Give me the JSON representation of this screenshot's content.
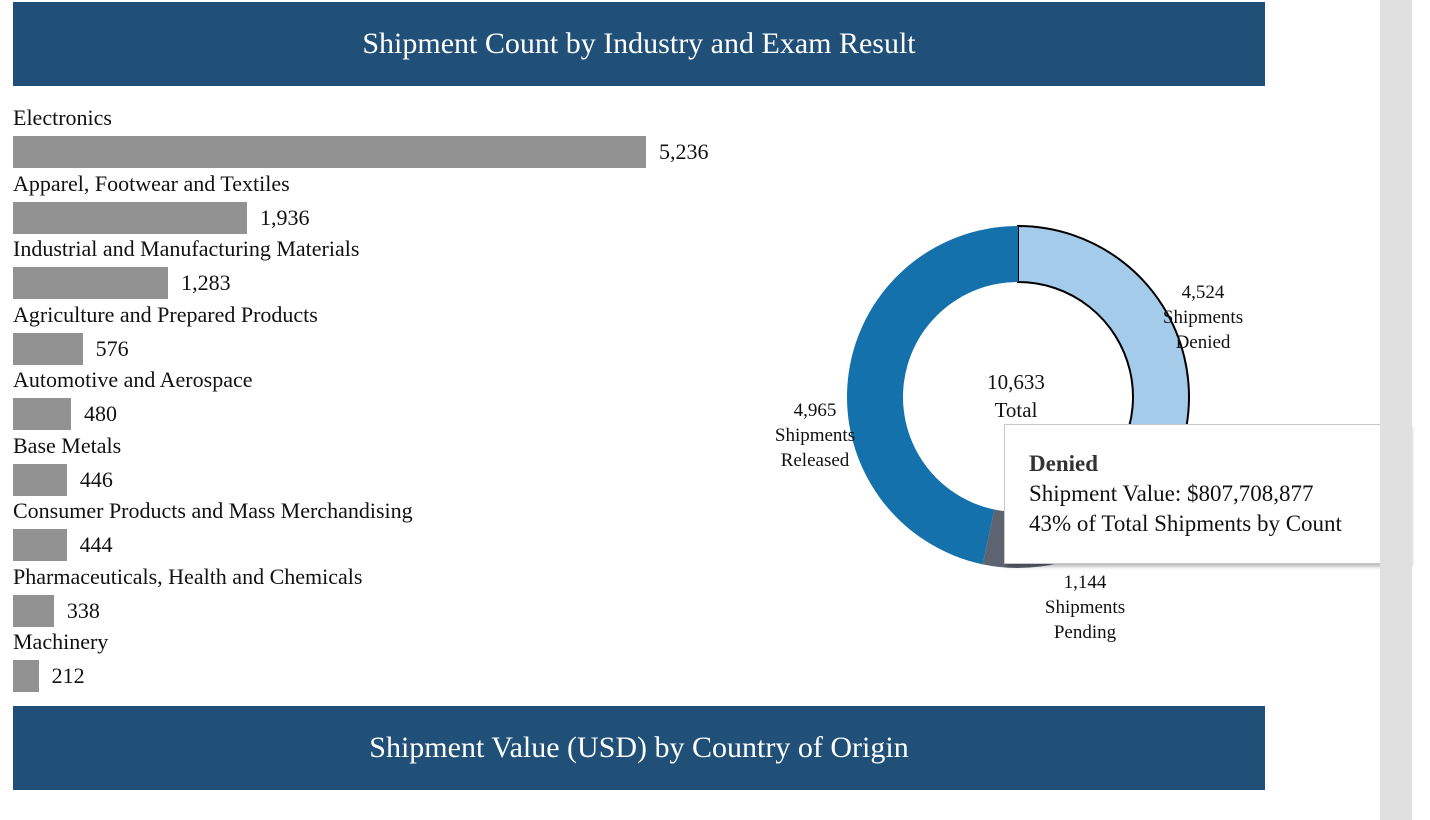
{
  "header": {
    "title": "Shipment Count by Industry and Exam Result"
  },
  "footer": {
    "title": "Shipment Value (USD) by Country of Origin"
  },
  "colors": {
    "banner": "#205077",
    "bar": "#929292",
    "released": "#1471ab",
    "denied": "#a5cbea",
    "pending": "#5d6470"
  },
  "chart_data": [
    {
      "type": "bar",
      "orientation": "horizontal",
      "title": "Shipment Count by Industry and Exam Result",
      "categories": [
        "Electronics",
        "Apparel, Footwear and Textiles",
        "Industrial and Manufacturing Materials",
        "Agriculture and Prepared Products",
        "Automotive and Aerospace",
        "Base Metals",
        "Consumer Products and Mass Merchandising",
        "Pharmaceuticals, Health and Chemicals",
        "Machinery"
      ],
      "values": [
        5236,
        1936,
        1283,
        576,
        480,
        446,
        444,
        338,
        212
      ],
      "value_labels": [
        "5,236",
        "1,936",
        "1,283",
        "576",
        "480",
        "446",
        "444",
        "338",
        "212"
      ]
    },
    {
      "type": "pie",
      "variant": "donut",
      "center_value": "10,633",
      "center_caption": "Total",
      "slices": [
        {
          "name": "Denied",
          "value": 4524,
          "value_label": "4,524",
          "caption": "Shipments\nDenied",
          "color": "#a5cbea",
          "highlighted": true
        },
        {
          "name": "Pending",
          "value": 1144,
          "value_label": "1,144",
          "caption": "Shipments\nPending",
          "color": "#5d6470"
        },
        {
          "name": "Released",
          "value": 4965,
          "value_label": "4,965",
          "caption": "Shipments\nReleased",
          "color": "#1471ab"
        }
      ]
    }
  ],
  "tooltip": {
    "title": "Denied",
    "line1": "Shipment Value: $807,708,877",
    "line2": "43% of Total Shipments by Count"
  }
}
